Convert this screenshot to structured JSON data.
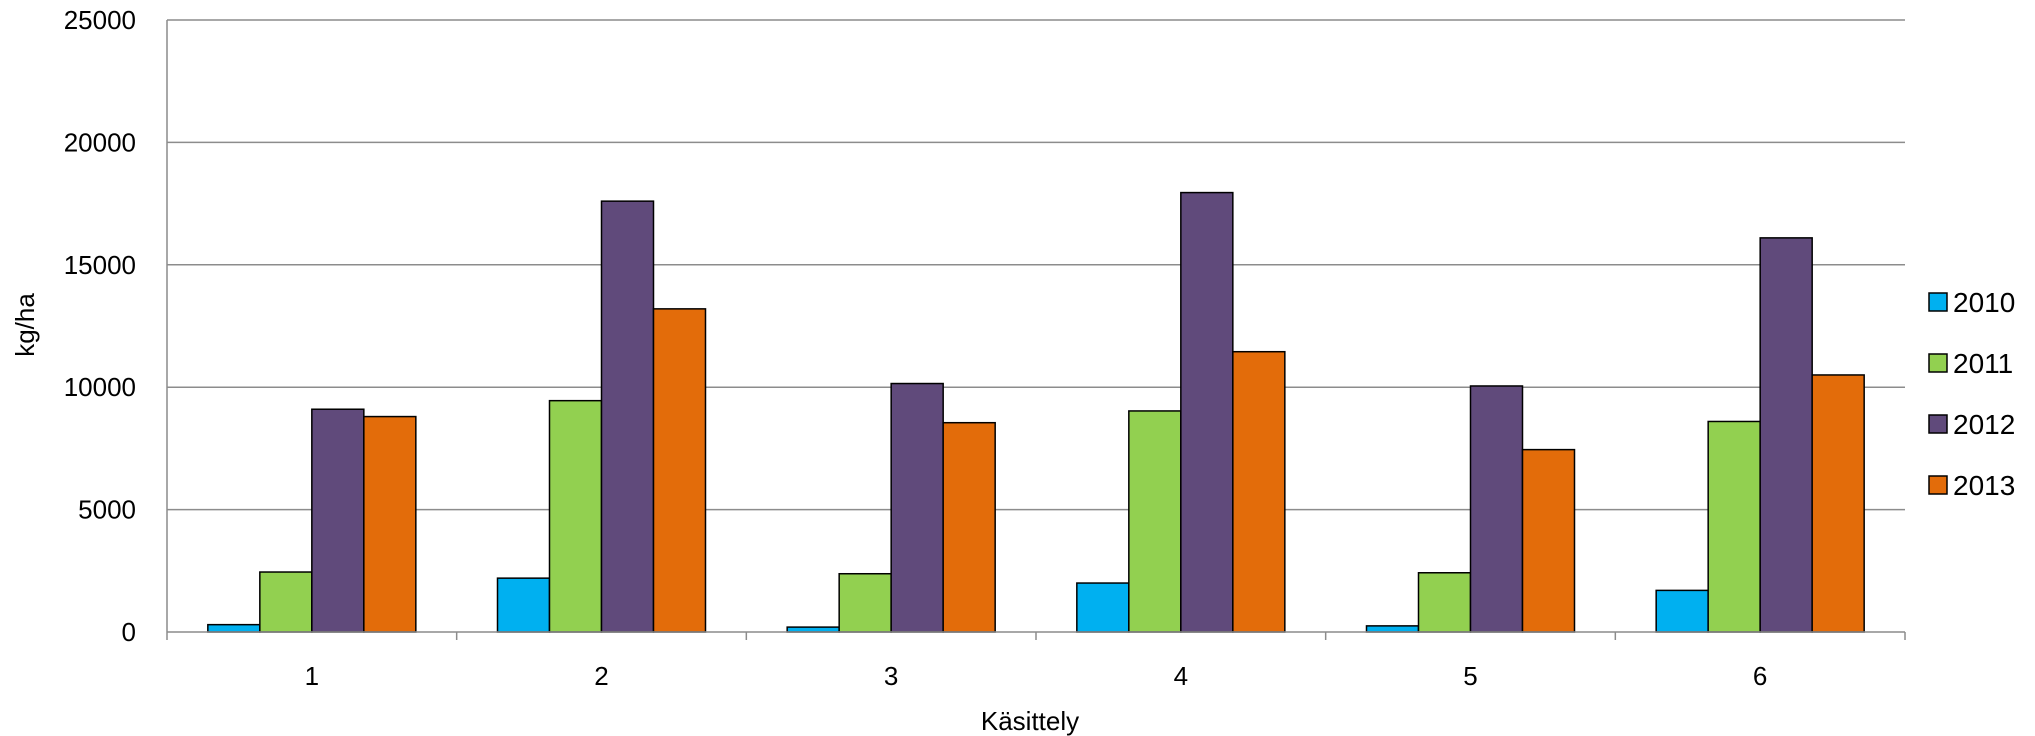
{
  "chart_data": {
    "type": "bar",
    "title": "",
    "xlabel": "Käsittely",
    "ylabel": "kg/ha",
    "ylim": [
      0,
      25000
    ],
    "yticks": [
      0,
      5000,
      10000,
      15000,
      20000,
      25000
    ],
    "grid": true,
    "legend_position": "right",
    "categories": [
      "1",
      "2",
      "3",
      "4",
      "5",
      "6"
    ],
    "series": [
      {
        "name": "2010",
        "color": "#00B0F0",
        "values": [
          300,
          2200,
          200,
          2000,
          250,
          1700
        ]
      },
      {
        "name": "2011",
        "color": "#92D050",
        "values": [
          2450,
          9450,
          2380,
          9030,
          2420,
          8600
        ]
      },
      {
        "name": "2012",
        "color": "#604A7B",
        "values": [
          9100,
          17600,
          10150,
          17950,
          10050,
          16100
        ]
      },
      {
        "name": "2013",
        "color": "#E36C0A",
        "values": [
          8800,
          13200,
          8550,
          11450,
          7450,
          10500
        ]
      }
    ]
  }
}
